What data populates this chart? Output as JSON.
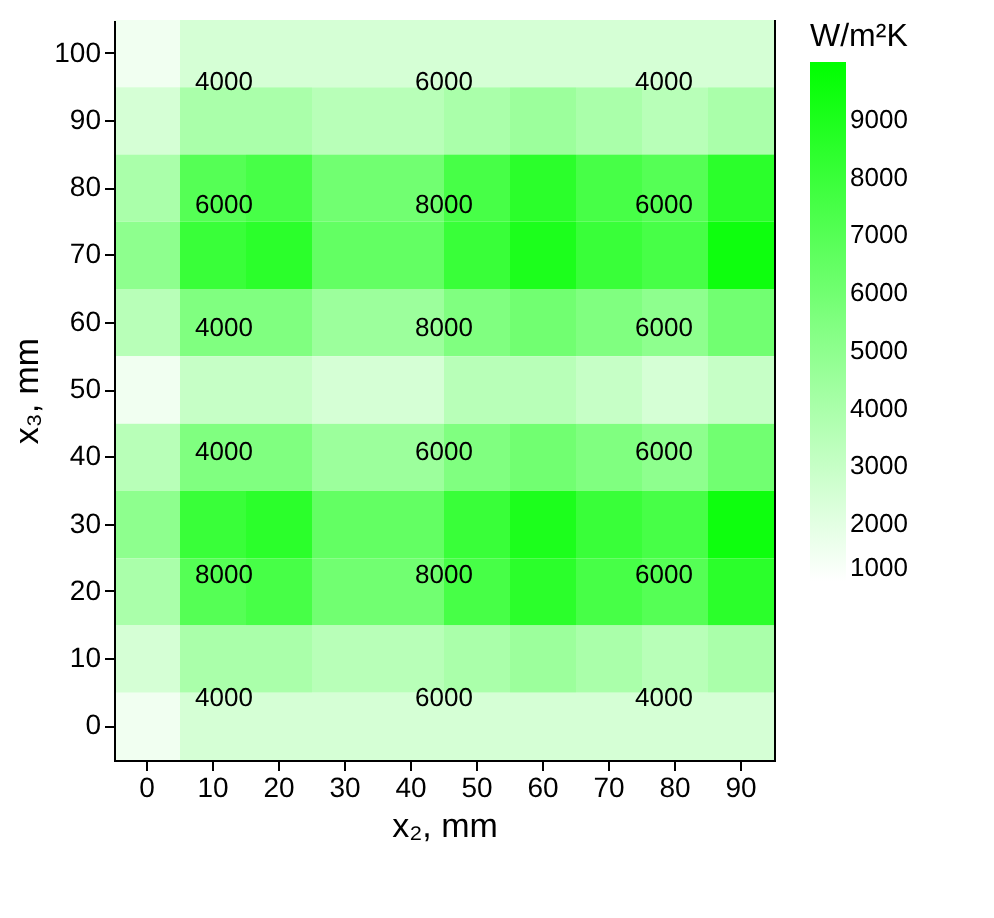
{
  "chart_data": {
    "type": "heatmap",
    "xlabel": "x₂, mm",
    "ylabel": "x₃, mm",
    "clabel": "W/m²K",
    "categories": [
      "0",
      "10",
      "20",
      "30",
      "40",
      "50",
      "60",
      "70",
      "80",
      "90"
    ],
    "y_categories": [
      "100",
      "90",
      "80",
      "70",
      "60",
      "50",
      "40",
      "30",
      "20",
      "10",
      "0"
    ],
    "cells": [
      [
        1500,
        2500,
        2500,
        2500,
        2500,
        2500,
        2500,
        2500,
        2500,
        2500
      ],
      [
        2500,
        4000,
        4000,
        3500,
        3500,
        4000,
        4500,
        4000,
        3500,
        4000
      ],
      [
        4000,
        7000,
        7500,
        6000,
        6000,
        7500,
        8500,
        7500,
        7000,
        8500
      ],
      [
        5000,
        8000,
        8500,
        6500,
        6500,
        8000,
        9000,
        8000,
        7500,
        9500
      ],
      [
        3500,
        5500,
        5500,
        4500,
        4500,
        5500,
        6000,
        5500,
        5000,
        6000
      ],
      [
        1500,
        3000,
        3000,
        2500,
        2500,
        3500,
        3500,
        3000,
        2500,
        3000
      ],
      [
        3500,
        5500,
        5500,
        4500,
        4500,
        5500,
        6000,
        5500,
        5000,
        6000
      ],
      [
        5000,
        8000,
        8500,
        6500,
        6500,
        8000,
        9000,
        8000,
        7500,
        9500
      ],
      [
        4000,
        7000,
        7500,
        6000,
        6000,
        7500,
        8500,
        7500,
        7000,
        8500
      ],
      [
        2500,
        4000,
        4000,
        3500,
        3500,
        4000,
        4500,
        4000,
        3500,
        4000
      ],
      [
        1500,
        2500,
        2500,
        2500,
        2500,
        2500,
        2500,
        2500,
        2500,
        2500
      ]
    ],
    "clim": [
      1000,
      10000
    ],
    "cticks": [
      1000,
      2000,
      3000,
      4000,
      5000,
      6000,
      7000,
      8000,
      9000
    ],
    "annotations": [
      "4000",
      "6000",
      "4000",
      "6000",
      "8000",
      "6000",
      "4000",
      "8000",
      "6000",
      "4000",
      "6000",
      "6000",
      "8000",
      "8000",
      "6000",
      "4000",
      "6000",
      "4000"
    ]
  }
}
